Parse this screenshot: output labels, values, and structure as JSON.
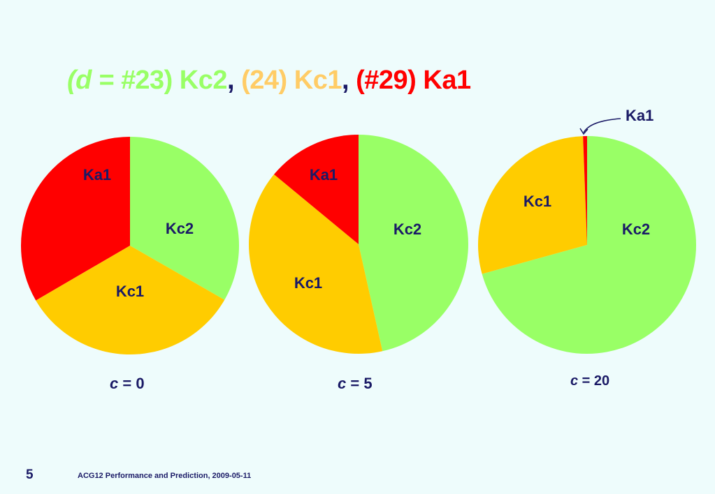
{
  "title": {
    "part1": "(d = #",
    "part2": "23) Kc2",
    "sep1": ",",
    "part3": " (24) Kc1",
    "sep2": ",",
    "part4": " (#29) Ka1"
  },
  "colors": {
    "Ka1": "#FF0000",
    "Kc1": "#FFCC00",
    "Kc2": "#99FF66",
    "label_text": "#1A1A66",
    "background": "#EEFCFC"
  },
  "chart_data": [
    {
      "type": "pie",
      "caption_var": "c",
      "caption_rest": " = 0",
      "slices": [
        {
          "label": "Kc2",
          "value": 33.3
        },
        {
          "label": "Kc1",
          "value": 33.3
        },
        {
          "label": "Ka1",
          "value": 33.4
        }
      ]
    },
    {
      "type": "pie",
      "caption_var": "c",
      "caption_rest": " = 5",
      "slices": [
        {
          "label": "Kc2",
          "value": 46.5
        },
        {
          "label": "Kc1",
          "value": 39.5
        },
        {
          "label": "Ka1",
          "value": 14.0
        }
      ]
    },
    {
      "type": "pie",
      "caption_var": "c",
      "caption_rest": " = 20",
      "slices": [
        {
          "label": "Kc2",
          "value": 70.7
        },
        {
          "label": "Kc1",
          "value": 28.7
        },
        {
          "label": "Ka1",
          "value": 0.6
        }
      ],
      "callout": "Ka1"
    }
  ],
  "footer": {
    "page_number": "5",
    "text": "ACG12 Performance and Prediction, 2009-05-11"
  }
}
